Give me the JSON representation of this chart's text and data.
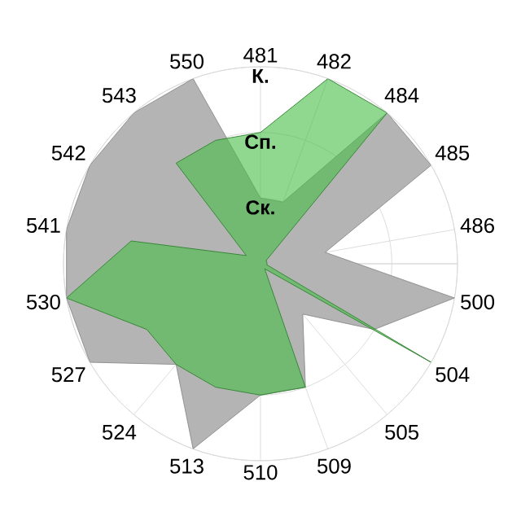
{
  "chart_data": {
    "type": "radar",
    "categories": [
      "481",
      "482",
      "484",
      "485",
      "486",
      "500",
      "504",
      "505",
      "509",
      "510",
      "513",
      "524",
      "527",
      "530",
      "541",
      "542",
      "543",
      "550"
    ],
    "series": [
      {
        "color": "#b4b4b4",
        "values": [
          1,
          1,
          3,
          3,
          1,
          3,
          2,
          1,
          2,
          2,
          3,
          2,
          3,
          3,
          3,
          3,
          3,
          3
        ]
      },
      {
        "color": "#46be46",
        "values": [
          2,
          3,
          3,
          0.1,
          0.1,
          0.1,
          3,
          0.1,
          2,
          2,
          2,
          2,
          2,
          3,
          2,
          0.25,
          2,
          2
        ]
      }
    ],
    "ylim": [
      0,
      3
    ],
    "yticks": [
      {
        "value": 1,
        "label": "Ск."
      },
      {
        "value": 2,
        "label": "Сп."
      },
      {
        "value": 3,
        "label": "К."
      }
    ],
    "grid": true
  }
}
